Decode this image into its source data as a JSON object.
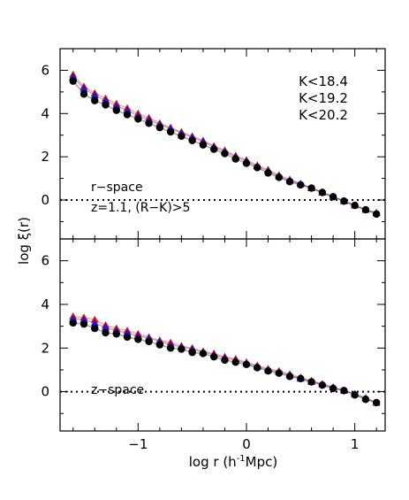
{
  "figure": {
    "xlabel_main": "log r (h",
    "xlabel_sup": "-1",
    "xlabel_tail": "Mpc)",
    "ylabel": "log ξ(r)"
  },
  "chart_data": [
    {
      "type": "scatter",
      "panel": "top",
      "xlim": [
        -1.72,
        1.28
      ],
      "ylim": [
        -1.8,
        7.0
      ],
      "xticks": [
        -1,
        0,
        1
      ],
      "yticks": [
        0,
        2,
        4,
        6
      ],
      "reference_line_y": 0,
      "annotations": [
        "r−space",
        "z=1.1, (R−K)>5"
      ],
      "legend": {
        "placement": "top-right",
        "entries": [
          {
            "label": "K<18.4",
            "color": "#000000"
          },
          {
            "label": "K<19.2",
            "color": "#1a1ad6"
          },
          {
            "label": "K<20.2",
            "color": "#e01010"
          }
        ]
      },
      "series": [
        {
          "name": "K<18.4",
          "color": "#000000",
          "marker": "circle",
          "x": [
            -1.6,
            -1.5,
            -1.4,
            -1.3,
            -1.2,
            -1.1,
            -1.0,
            -0.9,
            -0.8,
            -0.7,
            -0.6,
            -0.5,
            -0.4,
            -0.3,
            -0.2,
            -0.1,
            0.0,
            0.1,
            0.2,
            0.3,
            0.4,
            0.5,
            0.6,
            0.7,
            0.8,
            0.9,
            1.0,
            1.1,
            1.2
          ],
          "y": [
            5.5,
            4.9,
            4.6,
            4.4,
            4.15,
            3.95,
            3.75,
            3.55,
            3.35,
            3.15,
            2.95,
            2.75,
            2.55,
            2.35,
            2.15,
            1.9,
            1.7,
            1.5,
            1.25,
            1.05,
            0.85,
            0.7,
            0.55,
            0.35,
            0.15,
            -0.05,
            -0.25,
            -0.45,
            -0.65
          ]
        },
        {
          "name": "K<19.2",
          "color": "#1a1ad6",
          "marker": "triangle",
          "x": [
            -1.6,
            -1.5,
            -1.4,
            -1.3,
            -1.2,
            -1.1,
            -1.0,
            -0.9,
            -0.8,
            -0.7,
            -0.6,
            -0.5,
            -0.4,
            -0.3,
            -0.2,
            -0.1,
            0.0,
            0.1,
            0.2,
            0.3,
            0.4,
            0.5,
            0.6,
            0.7,
            0.8,
            0.9,
            1.0,
            1.1,
            1.2
          ],
          "y": [
            5.7,
            5.15,
            4.85,
            4.6,
            4.35,
            4.15,
            3.9,
            3.7,
            3.5,
            3.3,
            3.1,
            2.9,
            2.7,
            2.45,
            2.25,
            2.0,
            1.8,
            1.55,
            1.35,
            1.1,
            0.9,
            0.75,
            0.55,
            0.35,
            0.15,
            -0.05,
            -0.25,
            -0.45,
            -0.6
          ]
        },
        {
          "name": "K<20.2",
          "color": "#e01010",
          "marker": "triangle",
          "x": [
            -1.6,
            -1.5,
            -1.4,
            -1.3,
            -1.2,
            -1.1,
            -1.0,
            -0.9,
            -0.8,
            -0.7,
            -0.6,
            -0.5,
            -0.4,
            -0.3,
            -0.2,
            -0.1,
            0.0,
            0.1,
            0.2,
            0.3,
            0.4,
            0.5,
            0.6,
            0.7,
            0.8,
            0.9,
            1.0,
            1.1,
            1.2
          ],
          "y": [
            5.8,
            5.25,
            4.95,
            4.7,
            4.45,
            4.25,
            4.0,
            3.8,
            3.55,
            3.35,
            3.15,
            2.95,
            2.75,
            2.5,
            2.3,
            2.05,
            1.85,
            1.6,
            1.4,
            1.15,
            0.95,
            0.75,
            0.55,
            0.35,
            0.15,
            -0.05,
            -0.25,
            -0.45,
            -0.6
          ]
        }
      ]
    },
    {
      "type": "scatter",
      "panel": "bottom",
      "xlim": [
        -1.72,
        1.28
      ],
      "ylim": [
        -1.8,
        7.0
      ],
      "xticks": [
        -1,
        0,
        1
      ],
      "xtick_labels": [
        "−1",
        "0",
        "1"
      ],
      "yticks": [
        0,
        2,
        4,
        6
      ],
      "reference_line_y": 0,
      "annotations": [
        "z−space"
      ],
      "series": [
        {
          "name": "K<18.4",
          "color": "#000000",
          "marker": "circle",
          "x": [
            -1.6,
            -1.5,
            -1.4,
            -1.3,
            -1.2,
            -1.1,
            -1.0,
            -0.9,
            -0.8,
            -0.7,
            -0.6,
            -0.5,
            -0.4,
            -0.3,
            -0.2,
            -0.1,
            0.0,
            0.1,
            0.2,
            0.3,
            0.4,
            0.5,
            0.6,
            0.7,
            0.8,
            0.9,
            1.0,
            1.1,
            1.2
          ],
          "y": [
            3.15,
            3.1,
            2.9,
            2.7,
            2.65,
            2.5,
            2.4,
            2.3,
            2.15,
            2.0,
            1.95,
            1.8,
            1.75,
            1.6,
            1.45,
            1.35,
            1.25,
            1.1,
            0.95,
            0.85,
            0.7,
            0.6,
            0.45,
            0.3,
            0.15,
            0.05,
            -0.15,
            -0.35,
            -0.5
          ]
        },
        {
          "name": "K<19.2",
          "color": "#1a1ad6",
          "marker": "triangle",
          "x": [
            -1.6,
            -1.5,
            -1.4,
            -1.3,
            -1.2,
            -1.1,
            -1.0,
            -0.9,
            -0.8,
            -0.7,
            -0.6,
            -0.5,
            -0.4,
            -0.3,
            -0.2,
            -0.1,
            0.0,
            0.1,
            0.2,
            0.3,
            0.4,
            0.5,
            0.6,
            0.7,
            0.8,
            0.9,
            1.0,
            1.1,
            1.2
          ],
          "y": [
            3.35,
            3.3,
            3.15,
            2.95,
            2.8,
            2.7,
            2.55,
            2.45,
            2.3,
            2.15,
            2.05,
            1.95,
            1.8,
            1.7,
            1.55,
            1.45,
            1.3,
            1.15,
            1.0,
            0.9,
            0.75,
            0.6,
            0.45,
            0.35,
            0.2,
            0.05,
            -0.1,
            -0.3,
            -0.5
          ]
        },
        {
          "name": "K<20.2",
          "color": "#e01010",
          "marker": "triangle",
          "x": [
            -1.6,
            -1.5,
            -1.4,
            -1.3,
            -1.2,
            -1.1,
            -1.0,
            -0.9,
            -0.8,
            -0.7,
            -0.6,
            -0.5,
            -0.4,
            -0.3,
            -0.2,
            -0.1,
            0.0,
            0.1,
            0.2,
            0.3,
            0.4,
            0.5,
            0.6,
            0.7,
            0.8,
            0.9,
            1.0,
            1.1,
            1.2
          ],
          "y": [
            3.45,
            3.4,
            3.3,
            3.05,
            2.9,
            2.8,
            2.65,
            2.5,
            2.35,
            2.25,
            2.1,
            2.0,
            1.85,
            1.75,
            1.6,
            1.5,
            1.35,
            1.2,
            1.05,
            0.95,
            0.8,
            0.65,
            0.5,
            0.35,
            0.2,
            0.05,
            -0.1,
            -0.3,
            -0.5
          ]
        }
      ]
    }
  ]
}
